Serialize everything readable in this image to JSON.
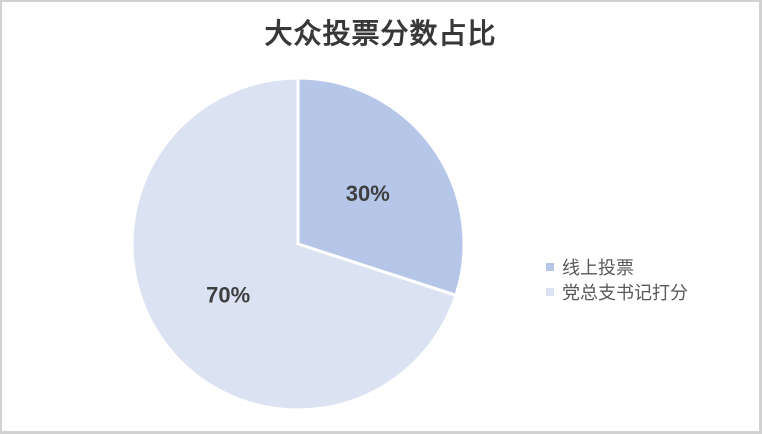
{
  "frame": {
    "background": "#ffffff",
    "border_color": "#d2d2d2"
  },
  "chart_data": {
    "type": "pie",
    "title": "大众投票分数占比",
    "categories": [
      "线上投票",
      "党总支书记打分"
    ],
    "values": [
      30,
      70
    ],
    "data_labels": [
      "30%",
      "70%"
    ],
    "colors": [
      "#b5c6e8",
      "#dbe2f2"
    ],
    "slice_border_color": "#ffffff",
    "title_color": "#383838",
    "data_label_color": "#3f3f3f",
    "legend_text_color": "#595959",
    "legend_position": "right",
    "start_angle_deg": 0,
    "direction": "clockwise"
  }
}
